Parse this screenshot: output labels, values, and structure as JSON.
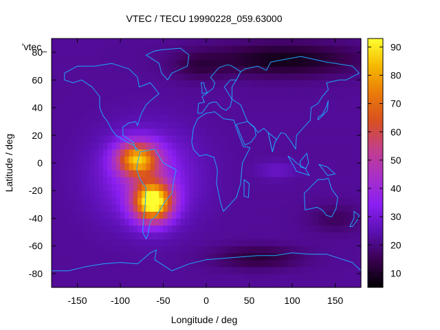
{
  "chart_data": {
    "type": "heatmap",
    "title": "VTEC / TECU 19990228_059.63000",
    "xlabel": "Longitude / deg",
    "ylabel": "Latitude / deg",
    "key_label": "'vtec_",
    "xlim": [
      -180,
      180
    ],
    "ylim": [
      -90,
      90
    ],
    "x_ticks": [
      -150,
      -100,
      -50,
      0,
      50,
      100,
      150
    ],
    "y_ticks": [
      -80,
      -60,
      -40,
      -20,
      0,
      20,
      40,
      60,
      80
    ],
    "colorbar": {
      "range": [
        5,
        93
      ],
      "ticks": [
        10,
        20,
        30,
        40,
        50,
        60,
        70,
        80,
        90
      ],
      "palette": [
        "#000000",
        "#3a0050",
        "#5a10b0",
        "#8a1ff2",
        "#a830c8",
        "#c33f8a",
        "#d85020",
        "#ea7a0a",
        "#f5b800",
        "#ffff30"
      ]
    },
    "background_vtec": 22,
    "features": [
      {
        "name": "south-america-crest-max",
        "lon": -62,
        "lat": -28,
        "peak": 92,
        "sx": 22,
        "sy": 14
      },
      {
        "name": "south-america-crest-north",
        "lon": -80,
        "lat": 3,
        "peak": 74,
        "sx": 24,
        "sy": 12
      },
      {
        "name": "broad-equatorial-enhancement",
        "lon": -70,
        "lat": -10,
        "peak": 38,
        "sx": 55,
        "sy": 32
      },
      {
        "name": "indian-ocean-patch",
        "lon": 82,
        "lat": -5,
        "peak": 28,
        "sx": 22,
        "sy": 6
      },
      {
        "name": "north-polar-trough",
        "lon": 90,
        "lat": 75,
        "peak": -14,
        "sx": 90,
        "sy": 12
      },
      {
        "name": "antarctic-trough",
        "lon": 60,
        "lat": -68,
        "peak": -10,
        "sx": 50,
        "sy": 8
      },
      {
        "name": "south-pacific-low",
        "lon": 150,
        "lat": -40,
        "peak": -6,
        "sx": 30,
        "sy": 10
      },
      {
        "name": "north-atlantic-low",
        "lon": -10,
        "lat": 70,
        "peak": -6,
        "sx": 30,
        "sy": 10
      }
    ],
    "coastlines": [
      {
        "name": "north-america",
        "points": [
          [
            -165,
            65
          ],
          [
            -150,
            70
          ],
          [
            -130,
            70
          ],
          [
            -110,
            72
          ],
          [
            -90,
            68
          ],
          [
            -80,
            62
          ],
          [
            -78,
            55
          ],
          [
            -65,
            58
          ],
          [
            -55,
            50
          ],
          [
            -65,
            45
          ],
          [
            -70,
            42
          ],
          [
            -76,
            35
          ],
          [
            -80,
            27
          ],
          [
            -82,
            30
          ],
          [
            -90,
            29
          ],
          [
            -97,
            26
          ],
          [
            -97,
            20
          ],
          [
            -90,
            17
          ],
          [
            -85,
            15
          ],
          [
            -82,
            9
          ],
          [
            -79,
            9
          ],
          [
            -85,
            13
          ],
          [
            -92,
            15
          ],
          [
            -105,
            20
          ],
          [
            -110,
            24
          ],
          [
            -115,
            30
          ],
          [
            -120,
            34
          ],
          [
            -124,
            40
          ],
          [
            -124,
            48
          ],
          [
            -133,
            55
          ],
          [
            -145,
            60
          ],
          [
            -155,
            58
          ],
          [
            -165,
            60
          ],
          [
            -165,
            65
          ]
        ]
      },
      {
        "name": "greenland",
        "points": [
          [
            -50,
            82
          ],
          [
            -30,
            83
          ],
          [
            -20,
            78
          ],
          [
            -22,
            70
          ],
          [
            -40,
            65
          ],
          [
            -45,
            60
          ],
          [
            -52,
            65
          ],
          [
            -55,
            72
          ],
          [
            -70,
            78
          ],
          [
            -60,
            81
          ],
          [
            -50,
            82
          ]
        ]
      },
      {
        "name": "south-america",
        "points": [
          [
            -77,
            8
          ],
          [
            -60,
            10
          ],
          [
            -50,
            0
          ],
          [
            -35,
            -5
          ],
          [
            -38,
            -13
          ],
          [
            -40,
            -22
          ],
          [
            -48,
            -28
          ],
          [
            -58,
            -38
          ],
          [
            -65,
            -42
          ],
          [
            -68,
            -52
          ],
          [
            -70,
            -55
          ],
          [
            -74,
            -50
          ],
          [
            -73,
            -40
          ],
          [
            -71,
            -30
          ],
          [
            -70,
            -18
          ],
          [
            -77,
            -12
          ],
          [
            -81,
            -5
          ],
          [
            -80,
            0
          ],
          [
            -77,
            8
          ]
        ]
      },
      {
        "name": "africa",
        "points": [
          [
            -17,
            15
          ],
          [
            -15,
            25
          ],
          [
            -10,
            32
          ],
          [
            0,
            36
          ],
          [
            10,
            37
          ],
          [
            20,
            32
          ],
          [
            32,
            31
          ],
          [
            35,
            25
          ],
          [
            43,
            12
          ],
          [
            51,
            11
          ],
          [
            42,
            0
          ],
          [
            40,
            -15
          ],
          [
            35,
            -25
          ],
          [
            20,
            -35
          ],
          [
            17,
            -30
          ],
          [
            12,
            -15
          ],
          [
            13,
            -5
          ],
          [
            9,
            4
          ],
          [
            0,
            6
          ],
          [
            -8,
            5
          ],
          [
            -15,
            10
          ],
          [
            -17,
            15
          ]
        ]
      },
      {
        "name": "europe",
        "points": [
          [
            -10,
            36
          ],
          [
            -9,
            43
          ],
          [
            -2,
            44
          ],
          [
            -5,
            48
          ],
          [
            0,
            50
          ],
          [
            8,
            54
          ],
          [
            10,
            58
          ],
          [
            5,
            62
          ],
          [
            15,
            69
          ],
          [
            25,
            71
          ],
          [
            30,
            70
          ],
          [
            40,
            66
          ],
          [
            35,
            60
          ],
          [
            28,
            60
          ],
          [
            21,
            55
          ],
          [
            30,
            46
          ],
          [
            28,
            41
          ],
          [
            23,
            38
          ],
          [
            17,
            40
          ],
          [
            12,
            44
          ],
          [
            8,
            44
          ],
          [
            3,
            43
          ],
          [
            -5,
            36
          ],
          [
            -10,
            36
          ]
        ]
      },
      {
        "name": "asia",
        "points": [
          [
            30,
            46
          ],
          [
            40,
            42
          ],
          [
            48,
            30
          ],
          [
            57,
            25
          ],
          [
            60,
            22
          ],
          [
            67,
            25
          ],
          [
            72,
            22
          ],
          [
            77,
            8
          ],
          [
            80,
            15
          ],
          [
            87,
            22
          ],
          [
            92,
            21
          ],
          [
            98,
            16
          ],
          [
            104,
            10
          ],
          [
            105,
            20
          ],
          [
            108,
            22
          ],
          [
            121,
            31
          ],
          [
            122,
            40
          ],
          [
            130,
            43
          ],
          [
            135,
            48
          ],
          [
            142,
            53
          ],
          [
            140,
            58
          ],
          [
            155,
            60
          ],
          [
            163,
            60
          ],
          [
            178,
            65
          ],
          [
            170,
            70
          ],
          [
            140,
            73
          ],
          [
            110,
            77
          ],
          [
            75,
            73
          ],
          [
            70,
            67
          ],
          [
            60,
            70
          ],
          [
            45,
            68
          ],
          [
            40,
            66
          ],
          [
            35,
            60
          ],
          [
            30,
            55
          ],
          [
            30,
            46
          ]
        ]
      },
      {
        "name": "arabia",
        "points": [
          [
            35,
            28
          ],
          [
            40,
            20
          ],
          [
            45,
            13
          ],
          [
            52,
            15
          ],
          [
            58,
            20
          ],
          [
            56,
            26
          ],
          [
            48,
            30
          ],
          [
            35,
            28
          ]
        ]
      },
      {
        "name": "india-tip",
        "points": [
          [
            72,
            22
          ],
          [
            77,
            8
          ],
          [
            80,
            15
          ],
          [
            82,
            17
          ],
          [
            72,
            22
          ]
        ]
      },
      {
        "name": "australia",
        "points": [
          [
            114,
            -22
          ],
          [
            122,
            -17
          ],
          [
            130,
            -12
          ],
          [
            137,
            -12
          ],
          [
            142,
            -11
          ],
          [
            146,
            -19
          ],
          [
            153,
            -25
          ],
          [
            151,
            -33
          ],
          [
            146,
            -39
          ],
          [
            140,
            -38
          ],
          [
            135,
            -34
          ],
          [
            129,
            -32
          ],
          [
            115,
            -34
          ],
          [
            114,
            -22
          ]
        ]
      },
      {
        "name": "madagascar",
        "points": [
          [
            44,
            -12
          ],
          [
            50,
            -15
          ],
          [
            49,
            -25
          ],
          [
            44,
            -24
          ],
          [
            44,
            -12
          ]
        ]
      },
      {
        "name": "japan",
        "points": [
          [
            130,
            31
          ],
          [
            135,
            34
          ],
          [
            141,
            38
          ],
          [
            142,
            45
          ],
          [
            140,
            41
          ],
          [
            135,
            35
          ],
          [
            130,
            33
          ],
          [
            130,
            31
          ]
        ]
      },
      {
        "name": "indonesia",
        "points": [
          [
            95,
            5
          ],
          [
            105,
            -6
          ],
          [
            115,
            -8
          ],
          [
            120,
            -9
          ],
          [
            115,
            -4
          ],
          [
            105,
            0
          ],
          [
            100,
            3
          ],
          [
            95,
            5
          ]
        ]
      },
      {
        "name": "borneo",
        "points": [
          [
            109,
            1
          ],
          [
            117,
            7
          ],
          [
            119,
            0
          ],
          [
            116,
            -4
          ],
          [
            110,
            -3
          ],
          [
            109,
            1
          ]
        ]
      },
      {
        "name": "new-guinea",
        "points": [
          [
            131,
            -1
          ],
          [
            141,
            -3
          ],
          [
            150,
            -8
          ],
          [
            141,
            -9
          ],
          [
            135,
            -4
          ],
          [
            131,
            -1
          ]
        ]
      },
      {
        "name": "uk",
        "points": [
          [
            -5,
            50
          ],
          [
            1,
            51
          ],
          [
            -2,
            55
          ],
          [
            -3,
            58
          ],
          [
            -6,
            58
          ],
          [
            -5,
            54
          ],
          [
            -5,
            50
          ]
        ]
      },
      {
        "name": "new-zealand",
        "points": [
          [
            172,
            -35
          ],
          [
            178,
            -38
          ],
          [
            175,
            -42
          ],
          [
            170,
            -46
          ],
          [
            167,
            -46
          ],
          [
            172,
            -40
          ],
          [
            172,
            -35
          ]
        ]
      },
      {
        "name": "antarctica",
        "points": [
          [
            -180,
            -78
          ],
          [
            -160,
            -78
          ],
          [
            -140,
            -75
          ],
          [
            -120,
            -73
          ],
          [
            -100,
            -72
          ],
          [
            -80,
            -73
          ],
          [
            -65,
            -65
          ],
          [
            -58,
            -63
          ],
          [
            -60,
            -70
          ],
          [
            -40,
            -78
          ],
          [
            -20,
            -73
          ],
          [
            0,
            -70
          ],
          [
            20,
            -69
          ],
          [
            40,
            -68
          ],
          [
            60,
            -67
          ],
          [
            80,
            -67
          ],
          [
            100,
            -65
          ],
          [
            120,
            -66
          ],
          [
            140,
            -66
          ],
          [
            160,
            -70
          ],
          [
            170,
            -72
          ],
          [
            180,
            -78
          ]
        ]
      }
    ]
  }
}
